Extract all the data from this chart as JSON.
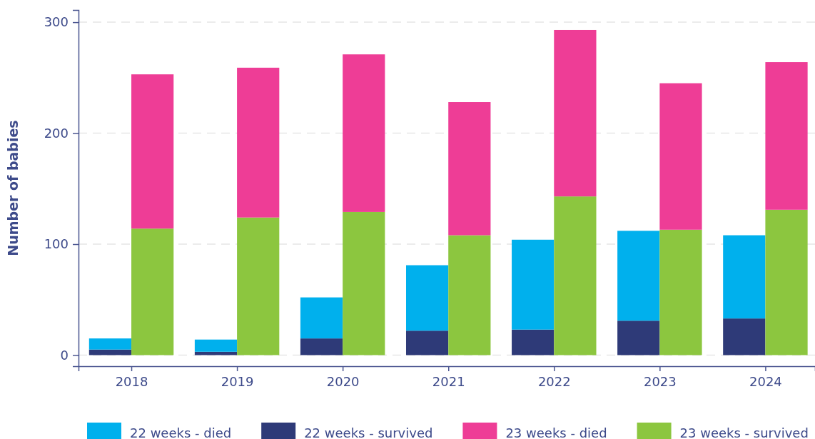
{
  "chart_data": {
    "type": "bar",
    "ylabel": "Number of babies",
    "stacked": true,
    "x": [
      2017.8,
      2018.2,
      2018.8,
      2019.2,
      2019.8,
      2020.2,
      2020.8,
      2021.2,
      2021.8,
      2022.2,
      2022.8,
      2023.2,
      2023.8,
      2024.2
    ],
    "series": [
      {
        "name": "22 weeks - survived",
        "color": "#2e3a78",
        "values": [
          5,
          null,
          3,
          null,
          15,
          null,
          22,
          null,
          23,
          null,
          31,
          null,
          33,
          null
        ]
      },
      {
        "name": "22 weeks - died",
        "color": "#00b0ed",
        "values": [
          10,
          null,
          11,
          null,
          37,
          null,
          59,
          null,
          81,
          null,
          81,
          null,
          75,
          null
        ]
      },
      {
        "name": "23 weeks - survived",
        "color": "#8cc63f",
        "values": [
          null,
          114,
          null,
          124,
          null,
          129,
          null,
          108,
          null,
          143,
          null,
          113,
          null,
          131
        ]
      },
      {
        "name": "23 weeks - died",
        "color": "#ee3d96",
        "values": [
          null,
          139,
          null,
          135,
          null,
          142,
          null,
          120,
          null,
          150,
          null,
          132,
          null,
          133
        ]
      }
    ],
    "xlim": [
      2017.5,
      2024.47
    ],
    "xticks": [
      2018,
      2019,
      2020,
      2021,
      2022,
      2023,
      2024
    ],
    "ylim": [
      -10,
      311
    ],
    "yticks": [
      0,
      100,
      200,
      300
    ],
    "grid": "y",
    "legend": "bottom"
  }
}
